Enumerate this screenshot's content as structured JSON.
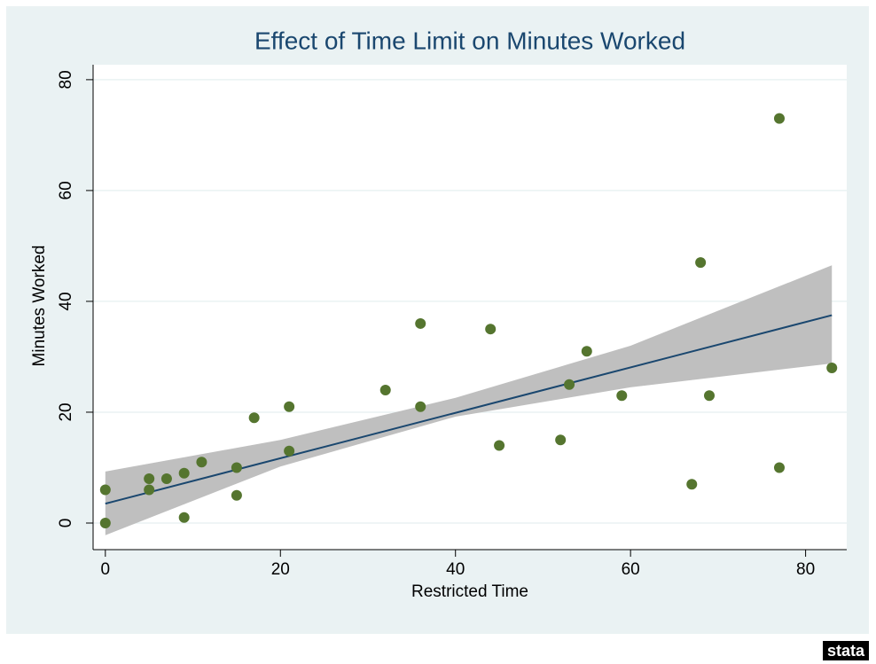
{
  "chart_data": {
    "type": "scatter",
    "title": "Effect of Time Limit on Minutes Worked",
    "x_label": "Restricted Time",
    "y_label": "Minutes Worked",
    "x": [
      0,
      0,
      5,
      5,
      7,
      9,
      9,
      11,
      15,
      15,
      17,
      21,
      21,
      32,
      36,
      36,
      44,
      45,
      52,
      53,
      55,
      59,
      67,
      68,
      69,
      77,
      77,
      83
    ],
    "values": [
      6,
      0,
      8,
      6,
      8,
      9,
      1,
      11,
      10,
      5,
      19,
      21,
      13,
      24,
      36,
      21,
      35,
      14,
      15,
      25,
      31,
      23,
      7,
      47,
      23,
      73,
      10,
      28
    ],
    "color": "#55752f",
    "fit": {
      "type": "line",
      "x": [
        0,
        83
      ],
      "values": [
        3.5,
        37.5
      ],
      "color": "#1a476f"
    },
    "ci": {
      "type": "area",
      "x": [
        0,
        20,
        40,
        60,
        83
      ],
      "lower": [
        -2.2,
        10.2,
        19.2,
        24.5,
        28.8
      ],
      "upper": [
        9.3,
        15.0,
        22.6,
        32.0,
        46.5
      ],
      "color": "#bfbfbf"
    },
    "xlim": [
      -1.4,
      84.7
    ],
    "ylim": [
      -4,
      82.7
    ],
    "xticks": [
      0,
      20,
      40,
      60,
      80
    ],
    "yticks": [
      0,
      20,
      40,
      60,
      80
    ],
    "grid": true,
    "logo": "stata"
  }
}
